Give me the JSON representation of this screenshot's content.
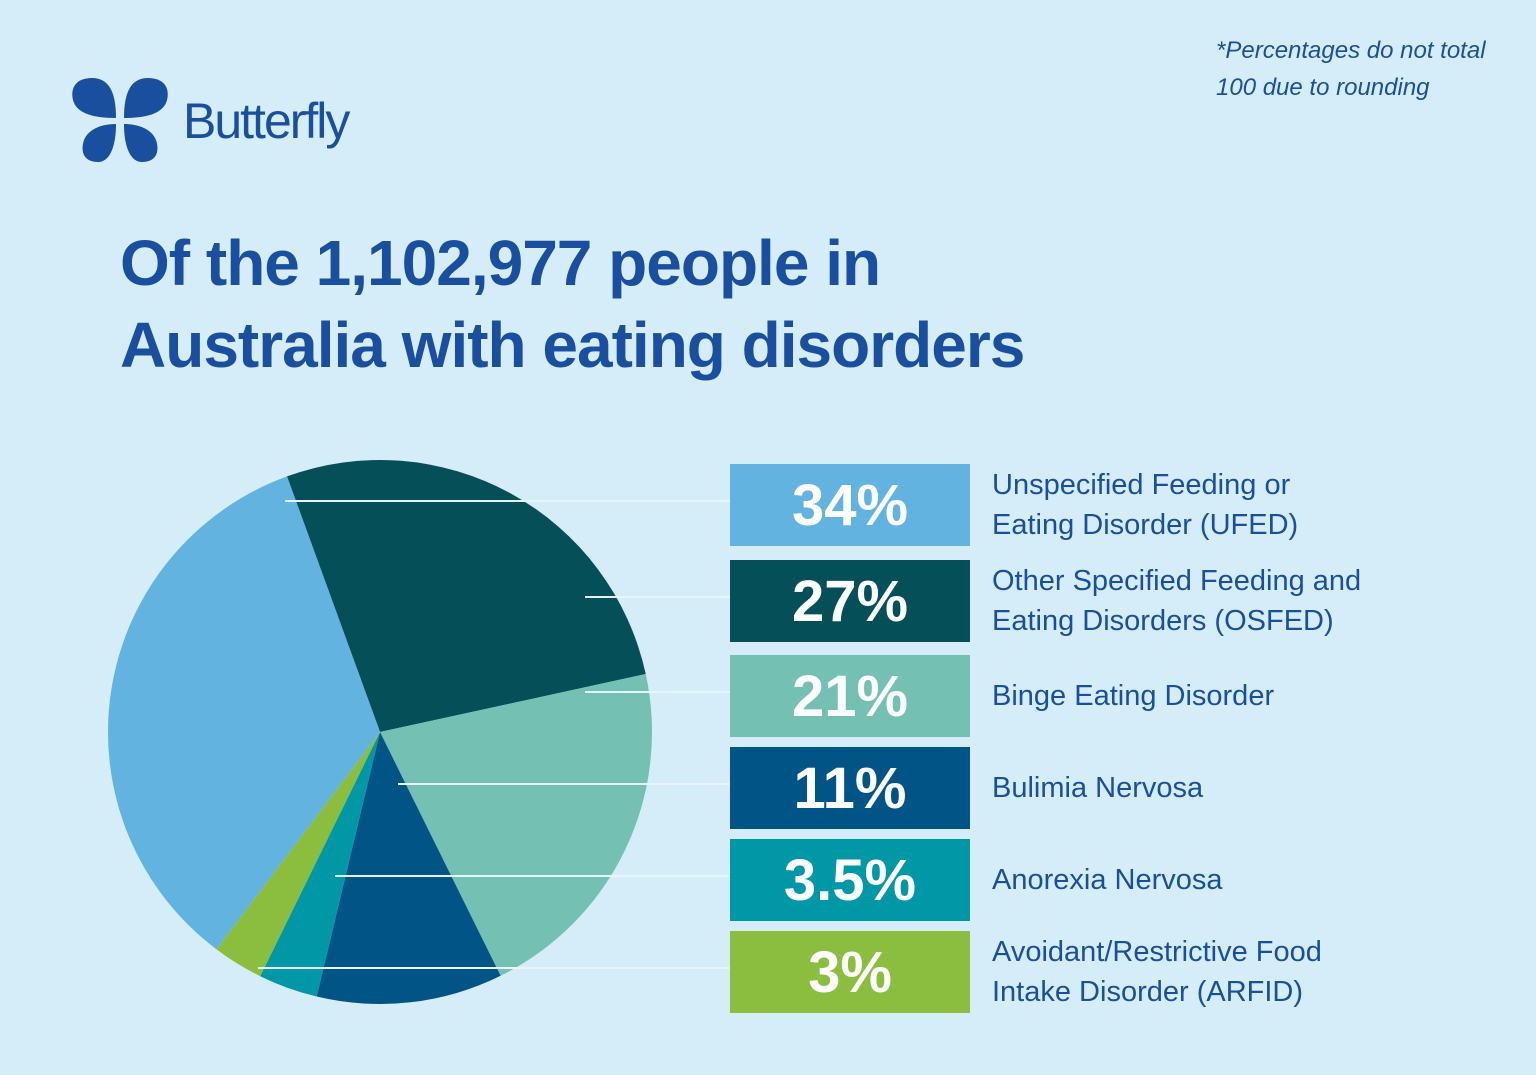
{
  "brand": {
    "name": "Butterfly",
    "color": "#1a4fa0"
  },
  "note": [
    "*Percentages do not total",
    "100 due to rounding"
  ],
  "title": [
    "Of the 1,102,977 people in",
    "Australia with eating disorders"
  ],
  "chart_data": {
    "type": "pie",
    "title": "Of the 1,102,977 people in Australia with eating disorders",
    "slices": [
      {
        "label": "Unspecified Feeding or Eating Disorder (UFED)",
        "label_lines": [
          "Unspecified Feeding or",
          "Eating Disorder (UFED)"
        ],
        "value": 34,
        "display": "34%",
        "color": "#63b3e0"
      },
      {
        "label": "Other Specified Feeding and Eating Disorders (OSFED)",
        "label_lines": [
          "Other Specified Feeding and",
          "Eating Disorders (OSFED)"
        ],
        "value": 27,
        "display": "27%",
        "color": "#054f59"
      },
      {
        "label": "Binge Eating Disorder",
        "label_lines": [
          "Binge Eating Disorder"
        ],
        "value": 21,
        "display": "21%",
        "color": "#74c1b4"
      },
      {
        "label": "Bulimia Nervosa",
        "label_lines": [
          "Bulimia Nervosa"
        ],
        "value": 11,
        "display": "11%",
        "color": "#005586"
      },
      {
        "label": "Anorexia Nervosa",
        "label_lines": [
          "Anorexia Nervosa"
        ],
        "value": 3.5,
        "display": "3.5%",
        "color": "#0097a7"
      },
      {
        "label": "Avoidant/Restrictive Food Intake Disorder (ARFID)",
        "label_lines": [
          "Avoidant/Restrictive Food",
          "Intake Disorder (ARFID)"
        ],
        "value": 3,
        "display": "3%",
        "color": "#8bbd3e"
      }
    ],
    "legend": "right"
  }
}
